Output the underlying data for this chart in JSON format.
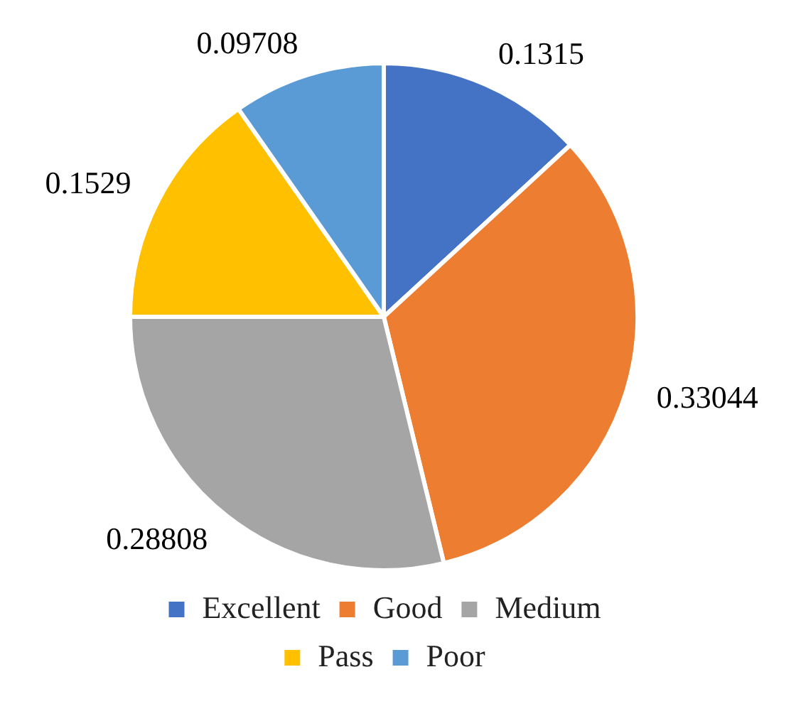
{
  "chart_data": {
    "type": "pie",
    "categories": [
      "Excellent",
      "Good",
      "Medium",
      "Pass",
      "Poor"
    ],
    "values": [
      0.1315,
      0.33044,
      0.28808,
      0.1529,
      0.09708
    ],
    "colors": [
      "#4472c4",
      "#ed7d31",
      "#a5a5a5",
      "#ffc000",
      "#5b9bd5"
    ],
    "data_labels": true,
    "legend": "bottom"
  }
}
